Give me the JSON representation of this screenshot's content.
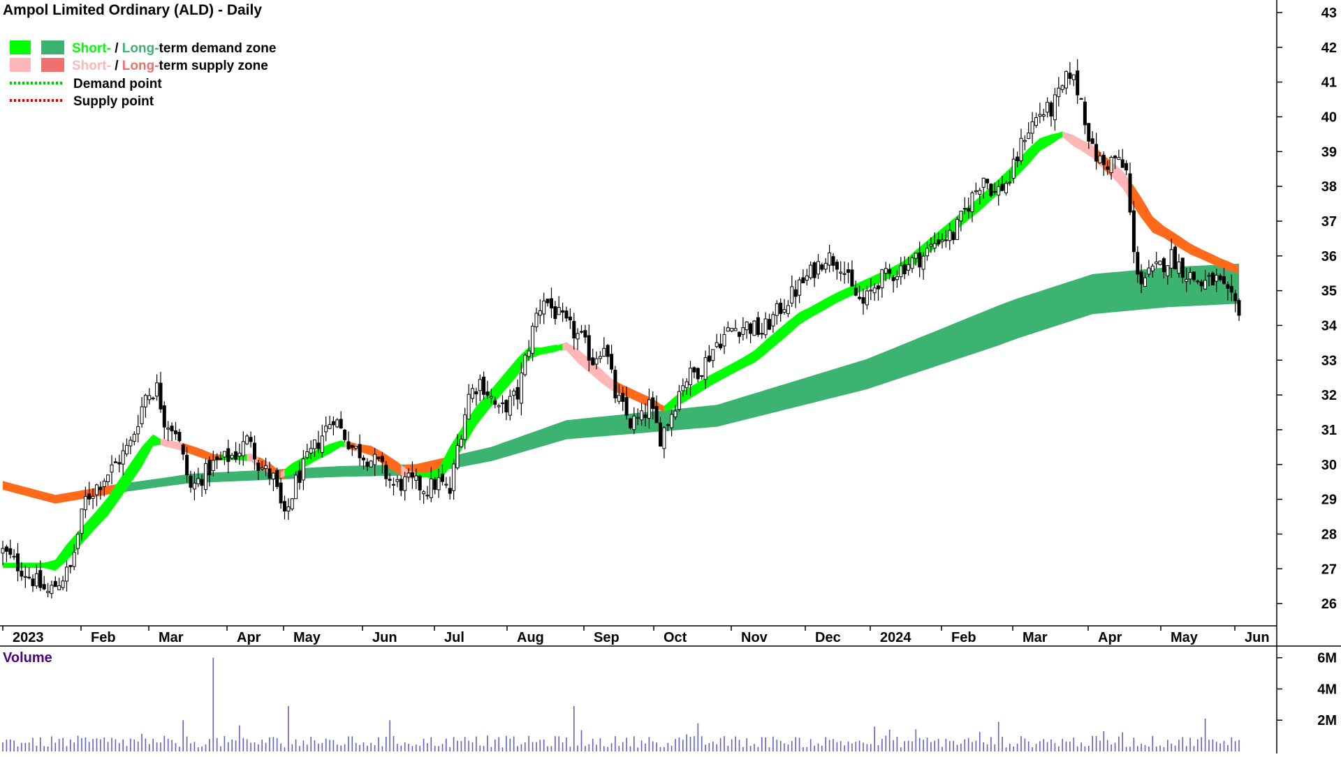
{
  "chart_data": {
    "type": "candlestick",
    "title": "Ampol Limited Ordinary (ALD) - Daily",
    "legend": {
      "placement": "top-left",
      "zone_demand": {
        "short_word": "Short-",
        "sep": " / ",
        "long_word": "Long-",
        "rest": "term demand zone"
      },
      "zone_supply": {
        "short_word": "Short-",
        "sep": " / ",
        "long_word": "Long-",
        "rest": "term supply zone"
      },
      "demand_point": "Demand point",
      "supply_point": "Supply point"
    },
    "colors": {
      "short_demand": "#00ff00",
      "long_demand": "#3cb371",
      "short_supply": "#ffb6b6",
      "long_supply": "#f07070",
      "demand_point": "#00c800",
      "supply_point": "#e00000",
      "overlap_supply": "#ff6a1a",
      "volume": "#6060c8",
      "volume_label": "#4b0082"
    },
    "y_axis": {
      "min": 25.5,
      "max": 43.2,
      "ticks": [
        "43",
        "42",
        "41",
        "40",
        "39",
        "38",
        "37",
        "36",
        "35",
        "34",
        "33",
        "32",
        "31",
        "30",
        "29",
        "28",
        "27",
        "26"
      ]
    },
    "x_axis": {
      "months": [
        "2023",
        "Feb",
        "Mar",
        "Apr",
        "May",
        "Jun",
        "Jul",
        "Aug",
        "Sep",
        "Oct",
        "Nov",
        "Dec",
        "2024",
        "Feb",
        "Mar",
        "Apr",
        "May",
        "Jun"
      ]
    },
    "price_path": [
      [
        0,
        27.5
      ],
      [
        12,
        26.3
      ],
      [
        18,
        27.0
      ],
      [
        22,
        29.0
      ],
      [
        30,
        30.0
      ],
      [
        34,
        30.6
      ],
      [
        38,
        32.0
      ],
      [
        41,
        32.2
      ],
      [
        43,
        31.3
      ],
      [
        46,
        31.0
      ],
      [
        50,
        29.3
      ],
      [
        56,
        30.0
      ],
      [
        62,
        30.3
      ],
      [
        66,
        30.8
      ],
      [
        68,
        30.0
      ],
      [
        72,
        29.6
      ],
      [
        75,
        28.4
      ],
      [
        78,
        29.5
      ],
      [
        82,
        30.3
      ],
      [
        88,
        31.4
      ],
      [
        90,
        31.0
      ],
      [
        93,
        30.5
      ],
      [
        100,
        30.0
      ],
      [
        104,
        29.4
      ],
      [
        108,
        29.5
      ],
      [
        113,
        29.3
      ],
      [
        116,
        29.5
      ],
      [
        119,
        29.2
      ],
      [
        121,
        30.5
      ],
      [
        124,
        32.0
      ],
      [
        127,
        32.4
      ],
      [
        129,
        32.1
      ],
      [
        132,
        31.5
      ],
      [
        134,
        31.7
      ],
      [
        137,
        32.0
      ],
      [
        139,
        33.0
      ],
      [
        142,
        34.3
      ],
      [
        144,
        34.8
      ],
      [
        146,
        34.5
      ],
      [
        150,
        34.0
      ],
      [
        154,
        33.6
      ],
      [
        157,
        33.0
      ],
      [
        160,
        33.5
      ],
      [
        163,
        32.0
      ],
      [
        167,
        31.2
      ],
      [
        170,
        31.3
      ],
      [
        172,
        31.7
      ],
      [
        175,
        30.8
      ],
      [
        178,
        31.5
      ],
      [
        181,
        32.4
      ],
      [
        186,
        32.8
      ],
      [
        190,
        33.5
      ],
      [
        194,
        33.9
      ],
      [
        198,
        34.0
      ],
      [
        202,
        33.8
      ],
      [
        207,
        34.5
      ],
      [
        211,
        35.0
      ],
      [
        215,
        35.5
      ],
      [
        219,
        36.0
      ],
      [
        223,
        35.8
      ],
      [
        226,
        35.0
      ],
      [
        229,
        34.6
      ],
      [
        233,
        35.3
      ],
      [
        237,
        35.5
      ],
      [
        241,
        35.8
      ],
      [
        245,
        36.0
      ],
      [
        249,
        36.5
      ],
      [
        253,
        36.6
      ],
      [
        257,
        37.5
      ],
      [
        261,
        38.3
      ],
      [
        264,
        37.8
      ],
      [
        268,
        38.2
      ],
      [
        272,
        39.5
      ],
      [
        276,
        40.1
      ],
      [
        279,
        40.2
      ],
      [
        282,
        40.8
      ],
      [
        284,
        41.3
      ],
      [
        287,
        40.5
      ],
      [
        290,
        39.0
      ],
      [
        293,
        38.6
      ],
      [
        296,
        38.8
      ],
      [
        299,
        38.4
      ],
      [
        301,
        36.0
      ],
      [
        303,
        35.3
      ],
      [
        307,
        35.6
      ],
      [
        311,
        36.0
      ],
      [
        315,
        35.5
      ],
      [
        319,
        35.2
      ],
      [
        323,
        35.3
      ],
      [
        326,
        34.8
      ],
      [
        329,
        34.5
      ]
    ],
    "ema_short_path": [
      [
        0,
        27.1
      ],
      [
        14,
        27.1
      ],
      [
        28,
        28.8
      ],
      [
        40,
        30.7
      ],
      [
        48,
        30.5
      ],
      [
        56,
        30.2
      ],
      [
        66,
        30.2
      ],
      [
        74,
        29.7
      ],
      [
        84,
        30.3
      ],
      [
        90,
        30.6
      ],
      [
        98,
        30.4
      ],
      [
        108,
        29.7
      ],
      [
        116,
        29.7
      ],
      [
        126,
        31.4
      ],
      [
        140,
        33.2
      ],
      [
        150,
        33.4
      ],
      [
        162,
        32.3
      ],
      [
        176,
        31.6
      ],
      [
        188,
        32.4
      ],
      [
        200,
        33.1
      ],
      [
        212,
        34.2
      ],
      [
        222,
        34.8
      ],
      [
        230,
        35.2
      ],
      [
        240,
        35.7
      ],
      [
        250,
        36.6
      ],
      [
        260,
        37.5
      ],
      [
        268,
        38.3
      ],
      [
        276,
        39.2
      ],
      [
        282,
        39.5
      ],
      [
        290,
        39.0
      ],
      [
        298,
        38.2
      ],
      [
        306,
        36.9
      ],
      [
        316,
        36.2
      ],
      [
        324,
        35.8
      ],
      [
        329,
        35.6
      ]
    ],
    "ema_long_path": [
      [
        0,
        29.4
      ],
      [
        14,
        29.0
      ],
      [
        30,
        29.3
      ],
      [
        50,
        29.6
      ],
      [
        70,
        29.7
      ],
      [
        90,
        29.8
      ],
      [
        110,
        29.85
      ],
      [
        130,
        30.3
      ],
      [
        150,
        31.0
      ],
      [
        170,
        31.2
      ],
      [
        190,
        31.4
      ],
      [
        210,
        32.0
      ],
      [
        230,
        32.6
      ],
      [
        250,
        33.4
      ],
      [
        270,
        34.2
      ],
      [
        290,
        34.9
      ],
      [
        310,
        35.1
      ],
      [
        329,
        35.2
      ]
    ],
    "volume_axis": {
      "ticks": [
        "6M",
        "4M",
        "2M"
      ],
      "max_millions": 6.3
    },
    "volume_label": "Volume",
    "volume_spike": {
      "index": 56,
      "millions": 6.0
    },
    "volume_notable": [
      {
        "index": 76,
        "millions": 2.9
      },
      {
        "index": 152,
        "millions": 2.9
      },
      {
        "index": 48,
        "millions": 2.0
      },
      {
        "index": 103,
        "millions": 2.0
      },
      {
        "index": 185,
        "millions": 1.8
      },
      {
        "index": 265,
        "millions": 1.9
      },
      {
        "index": 320,
        "millions": 2.1
      }
    ]
  }
}
